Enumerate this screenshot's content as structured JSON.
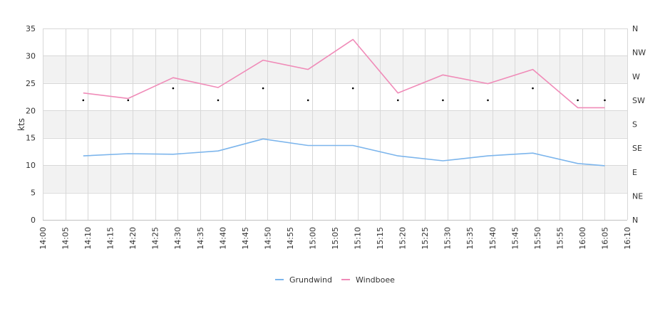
{
  "chart_data": {
    "type": "line",
    "ylabel": "kts",
    "ylim": [
      0,
      35
    ],
    "yticks": [
      "0",
      "5",
      "10",
      "15",
      "20",
      "25",
      "30",
      "35"
    ],
    "xlim": [
      "14:00",
      "16:10"
    ],
    "xticks": [
      "14:00",
      "14:05",
      "14:10",
      "14:15",
      "14:20",
      "14:25",
      "14:30",
      "14:35",
      "14:40",
      "14:45",
      "14:50",
      "14:55",
      "15:00",
      "15:05",
      "15:10",
      "15:15",
      "15:20",
      "15:25",
      "15:30",
      "15:35",
      "15:40",
      "15:45",
      "15:50",
      "15:55",
      "16:00",
      "16:05",
      "16:10"
    ],
    "direction_axis": {
      "labels": [
        "N",
        "NE",
        "E",
        "SE",
        "S",
        "SW",
        "W",
        "NW",
        "N"
      ],
      "range_degrees": [
        0,
        360
      ]
    },
    "x": [
      "14:09",
      "14:19",
      "14:29",
      "14:39",
      "14:49",
      "14:59",
      "15:09",
      "15:19",
      "15:29",
      "15:39",
      "15:49",
      "15:59",
      "16:05"
    ],
    "series": [
      {
        "name": "Grundwind",
        "color": "#7cb5ec",
        "values": [
          11.7,
          12.1,
          12.0,
          12.6,
          14.8,
          13.6,
          13.6,
          11.7,
          10.8,
          11.7,
          12.2,
          10.3,
          9.9
        ]
      },
      {
        "name": "Windboee",
        "color": "#f08bb8",
        "values": [
          23.2,
          22.2,
          26.0,
          24.2,
          29.2,
          27.5,
          33.0,
          23.2,
          26.5,
          24.9,
          27.5,
          20.5,
          20.5
        ]
      }
    ],
    "direction_points": {
      "x": [
        "14:09",
        "14:19",
        "14:29",
        "14:39",
        "14:49",
        "14:59",
        "15:09",
        "15:19",
        "15:29",
        "15:39",
        "15:49",
        "15:59",
        "16:05"
      ],
      "degrees": [
        225,
        225,
        247.5,
        225,
        247.5,
        225,
        247.5,
        225,
        225,
        225,
        247.5,
        225,
        225
      ]
    },
    "bands": "alternating",
    "grid": true,
    "legend_position": "bottom-center"
  },
  "colors": {
    "band": "#f2f2f2",
    "grid": "#d8d8d8",
    "axis": "#c0c0c0"
  }
}
